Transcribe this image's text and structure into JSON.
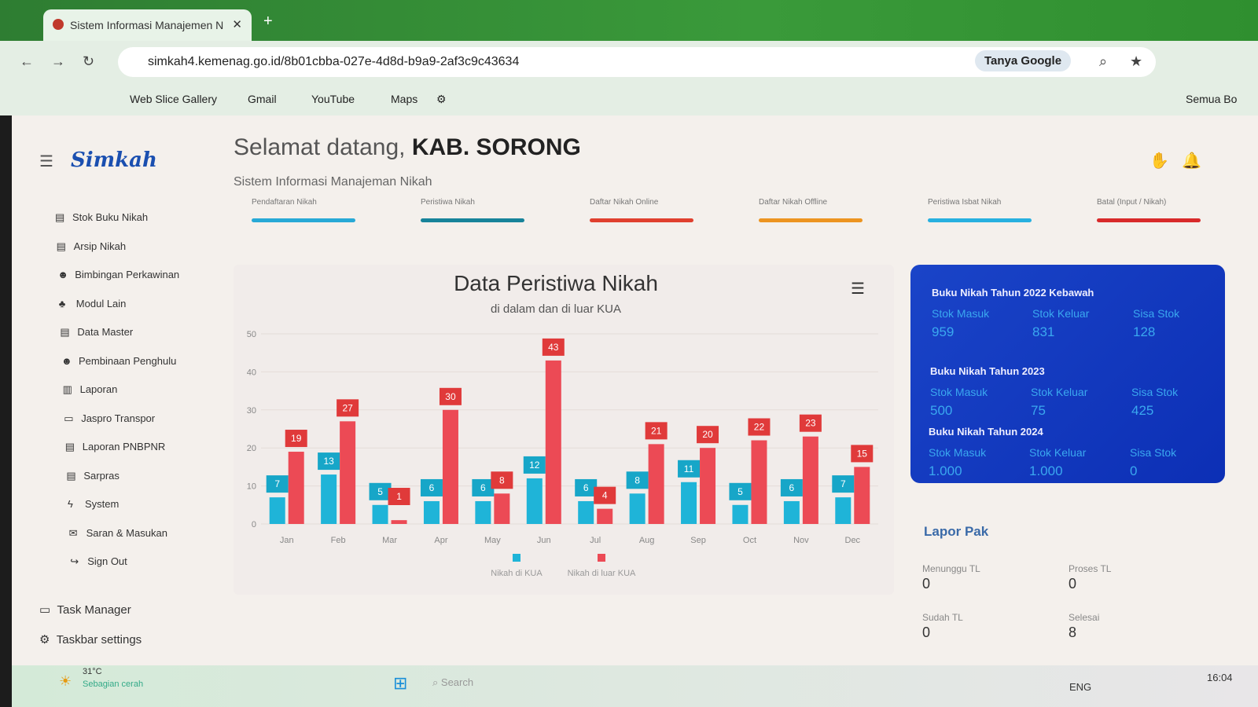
{
  "browser": {
    "tab_title": "Sistem Informasi Manajemen N",
    "url": "simkah4.kemenag.go.id/8b01cbba-027e-4d8d-b9a9-2af3c9c43634",
    "tanya_google": "Tanya Google",
    "bookmarks": [
      "Web Slice Gallery",
      "Gmail",
      "YouTube",
      "Maps"
    ],
    "all_bookmarks": "Semua Bo"
  },
  "app": {
    "logo": "Simkah",
    "welcome": "Selamat datang,",
    "org": "KAB. SORONG",
    "subtitle": "Sistem Informasi Manajeman Nikah"
  },
  "sidebar": {
    "items": [
      "Stok Buku Nikah",
      "Arsip Nikah",
      "Bimbingan Perkawinan",
      "Modul Lain",
      "Data Master",
      "Pembinaan Penghulu",
      "Laporan",
      "Jaspro Transpor",
      "Laporan PNBPNR",
      "Sarpras",
      "System",
      "Saran & Masukan",
      "Sign Out"
    ]
  },
  "stats": [
    {
      "label": "Pendaftaran Nikah",
      "color": "#27a9d6"
    },
    {
      "label": "Peristiwa Nikah",
      "color": "#17839a"
    },
    {
      "label": "Daftar Nikah Online",
      "color": "#e0402e"
    },
    {
      "label": "Daftar Nikah Offline",
      "color": "#ec9420"
    },
    {
      "label": "Peristiwa Isbat Nikah",
      "color": "#27b0e0"
    },
    {
      "label": "Batal (Input / Nikah)",
      "color": "#d82a2a"
    }
  ],
  "chart_data": {
    "type": "bar",
    "title": "Data Peristiwa Nikah",
    "subtitle": "di dalam dan di luar KUA",
    "categories": [
      "Jan",
      "Feb",
      "Mar",
      "Apr",
      "May",
      "Jun",
      "Jul",
      "Aug",
      "Sep",
      "Oct",
      "Nov",
      "Dec"
    ],
    "ylim": [
      0,
      50
    ],
    "yticks": [
      0,
      10,
      20,
      30,
      40,
      50
    ],
    "grid": true,
    "legend": "bottom",
    "series": [
      {
        "name": "Nikah di KUA",
        "color": "#1fb4d8",
        "values": [
          7,
          13,
          5,
          6,
          6,
          12,
          6,
          8,
          11,
          5,
          6,
          7
        ]
      },
      {
        "name": "Nikah di luar KUA",
        "color": "#ec4a55",
        "values": [
          19,
          27,
          1,
          30,
          8,
          43,
          4,
          21,
          20,
          22,
          23,
          15
        ]
      }
    ]
  },
  "stock": [
    {
      "title": "Buku Nikah Tahun 2022 Kebawah",
      "masuk": "959",
      "keluar": "831",
      "sisa": "128"
    },
    {
      "title": "Buku Nikah Tahun 2023",
      "masuk": "500",
      "keluar": "75",
      "sisa": "425"
    },
    {
      "title": "Buku Nikah Tahun 2024",
      "masuk": "1.000",
      "keluar": "1.000",
      "sisa": "0"
    }
  ],
  "stock_labels": {
    "masuk": "Stok Masuk",
    "keluar": "Stok Keluar",
    "sisa": "Sisa Stok"
  },
  "lapor": {
    "title": "Lapor Pak",
    "items": [
      {
        "label": "Menunggu TL",
        "value": "0"
      },
      {
        "label": "Proses TL",
        "value": "0"
      },
      {
        "label": "Sudah TL",
        "value": "0"
      },
      {
        "label": "Selesai",
        "value": "8"
      }
    ]
  },
  "taskbar": {
    "menu": [
      "Task Manager",
      "Taskbar settings"
    ],
    "weather_temp": "31°C",
    "weather_desc": "Sebagian cerah",
    "search": "Search",
    "lang": "ENG",
    "time": "16:04"
  }
}
